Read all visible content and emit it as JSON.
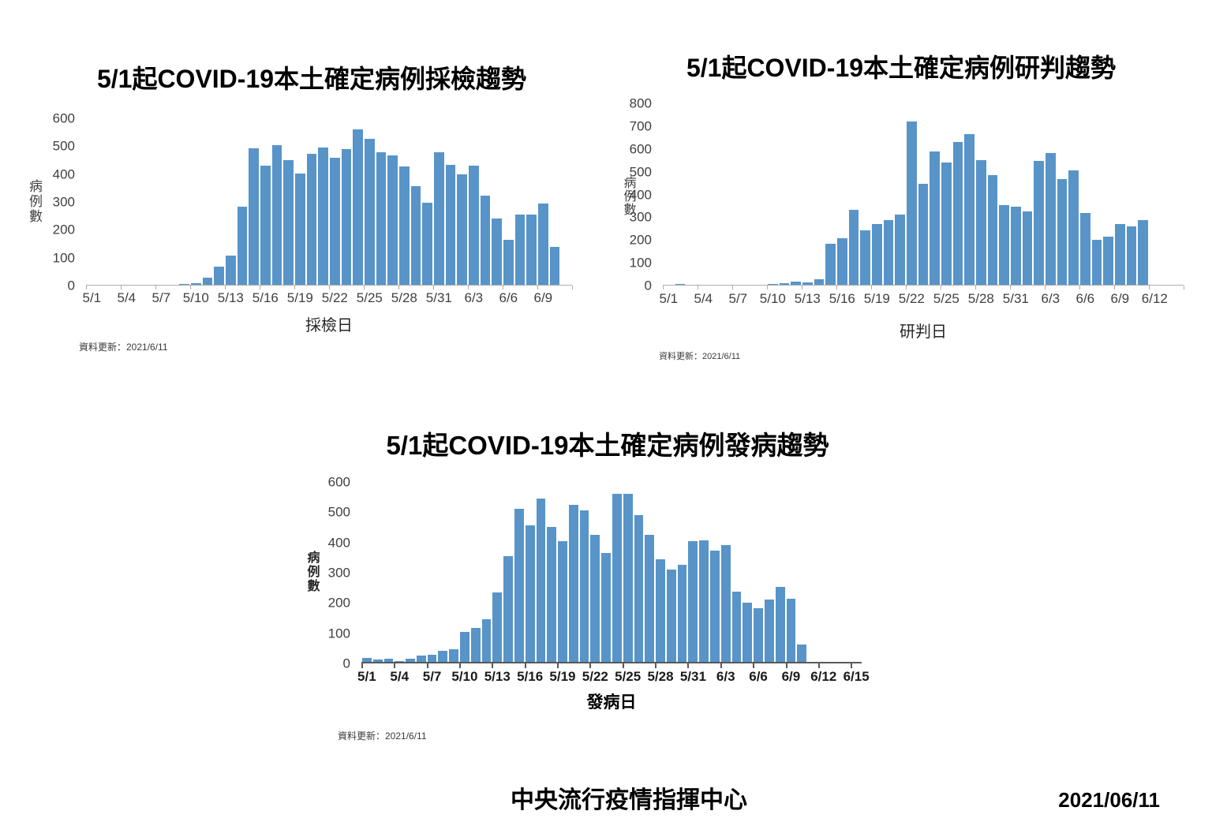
{
  "page": {
    "footer_org": "中央流行疫情指揮中心",
    "footer_date": "2021/06/11",
    "colors": {
      "bar": "#5894C8",
      "axis": "#ADADAD",
      "axis_dark": "#595959",
      "label": "#404040"
    }
  },
  "chart_data": [
    {
      "type": "bar",
      "title": "5/1起COVID-19本土確定病例採檢趨勢",
      "ylabel": "病例數",
      "xlabel": "採檢日",
      "update_note": "資料更新：2021/6/11",
      "ylim": [
        0,
        600
      ],
      "ytick_step": 100,
      "n_slots": 42,
      "tick_every": 3,
      "grid": false,
      "legend": false,
      "tick_labels": [
        "5/1",
        "5/4",
        "5/7",
        "5/10",
        "5/13",
        "5/16",
        "5/19",
        "5/22",
        "5/25",
        "5/28",
        "5/31",
        "6/3",
        "6/6",
        "6/9"
      ],
      "categories": [
        "5/1",
        "5/2",
        "5/3",
        "5/4",
        "5/5",
        "5/6",
        "5/7",
        "5/8",
        "5/9",
        "5/10",
        "5/11",
        "5/12",
        "5/13",
        "5/14",
        "5/15",
        "5/16",
        "5/17",
        "5/18",
        "5/19",
        "5/20",
        "5/21",
        "5/22",
        "5/23",
        "5/24",
        "5/25",
        "5/26",
        "5/27",
        "5/28",
        "5/29",
        "5/30",
        "5/31",
        "6/1",
        "6/2",
        "6/3",
        "6/4",
        "6/5",
        "6/6",
        "6/7",
        "6/8",
        "6/9",
        "6/10"
      ],
      "values": [
        0,
        0,
        0,
        0,
        0,
        0,
        0,
        0,
        3,
        5,
        25,
        65,
        105,
        280,
        490,
        428,
        500,
        447,
        400,
        469,
        492,
        457,
        488,
        558,
        525,
        476,
        464,
        424,
        354,
        295,
        476,
        431,
        395,
        428,
        321,
        238,
        162,
        252,
        252,
        292,
        135
      ]
    },
    {
      "type": "bar",
      "title": "5/1起COVID-19本土確定病例研判趨勢",
      "ylabel": "病例數",
      "xlabel": "研判日",
      "update_note": "資料更新：2021/6/11",
      "ylim": [
        0,
        800
      ],
      "ytick_step": 100,
      "n_slots": 45,
      "tick_every": 3,
      "grid": false,
      "legend": false,
      "tick_labels": [
        "5/1",
        "5/4",
        "5/7",
        "5/10",
        "5/13",
        "5/16",
        "5/19",
        "5/22",
        "5/25",
        "5/28",
        "5/31",
        "6/3",
        "6/6",
        "6/9",
        "6/12"
      ],
      "categories": [
        "5/1",
        "5/2",
        "5/3",
        "5/4",
        "5/5",
        "5/6",
        "5/7",
        "5/8",
        "5/9",
        "5/10",
        "5/11",
        "5/12",
        "5/13",
        "5/14",
        "5/15",
        "5/16",
        "5/17",
        "5/18",
        "5/19",
        "5/20",
        "5/21",
        "5/22",
        "5/23",
        "5/24",
        "5/25",
        "5/26",
        "5/27",
        "5/28",
        "5/29",
        "5/30",
        "5/31",
        "6/1",
        "6/2",
        "6/3",
        "6/4",
        "6/5",
        "6/6",
        "6/7",
        "6/8",
        "6/9",
        "6/10",
        "6/11"
      ],
      "values": [
        0,
        3,
        0,
        0,
        0,
        0,
        0,
        0,
        0,
        3,
        8,
        14,
        12,
        26,
        180,
        206,
        330,
        240,
        265,
        284,
        310,
        716,
        445,
        585,
        538,
        628,
        663,
        548,
        480,
        351,
        343,
        322,
        544,
        577,
        465,
        502,
        314,
        198,
        213,
        268,
        258,
        283
      ]
    },
    {
      "type": "bar",
      "title": "5/1起COVID-19本土確定病例發病趨勢",
      "ylabel": "病例數",
      "xlabel": "發病日",
      "update_note": "資料更新：2021/6/11",
      "ylim": [
        0,
        600
      ],
      "ytick_step": 100,
      "n_slots": 46,
      "tick_every": 3,
      "grid": false,
      "legend": false,
      "tick_labels": [
        "5/1",
        "5/4",
        "5/7",
        "5/10",
        "5/13",
        "5/16",
        "5/19",
        "5/22",
        "5/25",
        "5/28",
        "5/31",
        "6/3",
        "6/6",
        "6/9",
        "6/12",
        "6/15"
      ],
      "categories": [
        "5/1",
        "5/2",
        "5/3",
        "5/4",
        "5/5",
        "5/6",
        "5/7",
        "5/8",
        "5/9",
        "5/10",
        "5/11",
        "5/12",
        "5/13",
        "5/14",
        "5/15",
        "5/16",
        "5/17",
        "5/18",
        "5/19",
        "5/20",
        "5/21",
        "5/22",
        "5/23",
        "5/24",
        "5/25",
        "5/26",
        "5/27",
        "5/28",
        "5/29",
        "5/30",
        "5/31",
        "6/1",
        "6/2",
        "6/3",
        "6/4",
        "6/5",
        "6/6",
        "6/7",
        "6/8",
        "6/9",
        "6/10"
      ],
      "values": [
        12,
        8,
        11,
        2,
        10,
        21,
        23,
        36,
        43,
        98,
        112,
        140,
        230,
        350,
        505,
        452,
        540,
        445,
        400,
        520,
        500,
        420,
        360,
        555,
        555,
        485,
        420,
        338,
        305,
        320,
        400,
        402,
        368,
        385,
        232,
        196,
        178,
        207,
        248,
        209,
        57
      ]
    }
  ]
}
